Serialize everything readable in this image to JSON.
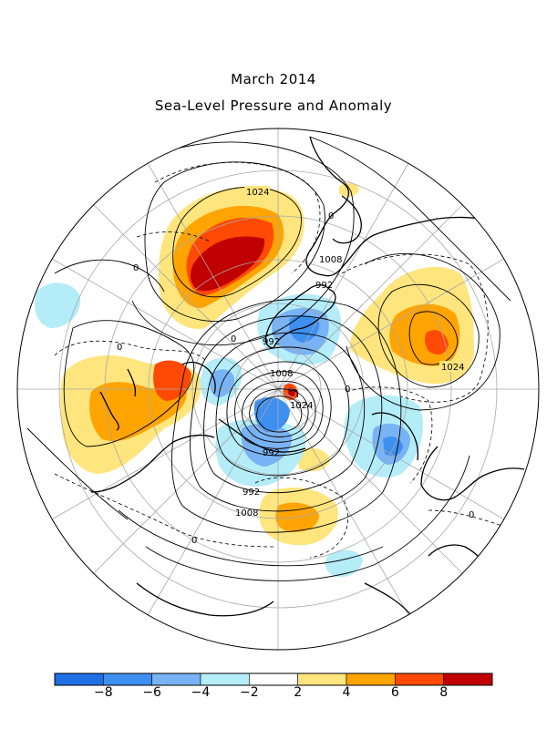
{
  "title": {
    "line1": "March 2014",
    "line2": "Sea-Level Pressure and Anomaly"
  },
  "colorbar": {
    "colors": [
      "#1f6fe5",
      "#3d8ff0",
      "#78b3f5",
      "#b4ecf8",
      "#ffffff",
      "#ffe57d",
      "#ffa400",
      "#ff4a05",
      "#c00000"
    ],
    "tick_labels": [
      "−8",
      "−6",
      "−4",
      "−2",
      "2",
      "4",
      "6",
      "8"
    ]
  },
  "contour_labels": {
    "c1024_a": "1024",
    "c1024_b": "1024",
    "c1024_c": "1024",
    "c1008_a": "1008",
    "c1008_b": "1008",
    "c1008_c": "1008",
    "c992_a": "992",
    "c992_b": "992",
    "c992_c": "992",
    "c992_d": "992",
    "c0_a": "0",
    "c0_b": "0",
    "c0_c": "0",
    "c0_d": "0",
    "c0_e": "0",
    "c0_f": "0",
    "c0_g": "0"
  }
}
